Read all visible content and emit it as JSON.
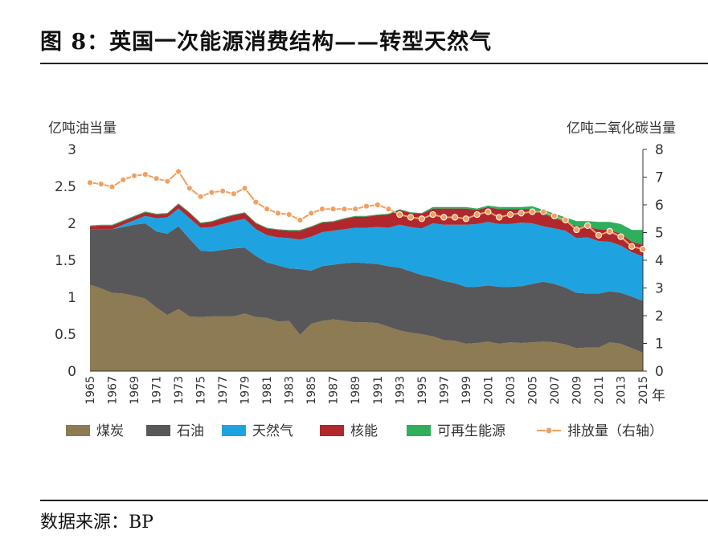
{
  "figure": {
    "title": "图 8：英国一次能源消费结构——转型天然气",
    "source": "数据来源：BP"
  },
  "chart_data": {
    "type": "area",
    "ylabel_left": "亿吨油当量",
    "ylabel_right": "亿吨二氧化碳当量",
    "x_unit": "年",
    "ylim_left": [
      0,
      3
    ],
    "ylim_right": [
      0,
      8
    ],
    "yticks_left": [
      "0",
      "0.5",
      "1",
      "1.5",
      "2",
      "2.5",
      "3"
    ],
    "yticks_right": [
      "0",
      "1",
      "2",
      "3",
      "4",
      "5",
      "6",
      "7",
      "8"
    ],
    "xticks": [
      "1965",
      "1967",
      "1969",
      "1971",
      "1973",
      "1975",
      "1977",
      "1979",
      "1981",
      "1983",
      "1985",
      "1987",
      "1989",
      "1991",
      "1993",
      "1995",
      "1997",
      "1999",
      "2001",
      "2003",
      "2005",
      "2007",
      "2009",
      "2011",
      "2013",
      "2015"
    ],
    "x": [
      1965,
      1966,
      1967,
      1968,
      1969,
      1970,
      1971,
      1972,
      1973,
      1974,
      1975,
      1976,
      1977,
      1978,
      1979,
      1980,
      1981,
      1982,
      1983,
      1984,
      1985,
      1986,
      1987,
      1988,
      1989,
      1990,
      1991,
      1992,
      1993,
      1994,
      1995,
      1996,
      1997,
      1998,
      1999,
      2000,
      2001,
      2002,
      2003,
      2004,
      2005,
      2006,
      2007,
      2008,
      2009,
      2010,
      2011,
      2012,
      2013,
      2014,
      2015
    ],
    "series": [
      {
        "name": "煤炭",
        "axis": "left",
        "color": "#8c7b53",
        "values": [
          1.17,
          1.12,
          1.06,
          1.05,
          1.02,
          0.98,
          0.86,
          0.76,
          0.84,
          0.74,
          0.73,
          0.74,
          0.74,
          0.74,
          0.78,
          0.73,
          0.72,
          0.67,
          0.68,
          0.49,
          0.64,
          0.68,
          0.7,
          0.68,
          0.66,
          0.66,
          0.65,
          0.6,
          0.55,
          0.52,
          0.5,
          0.47,
          0.42,
          0.41,
          0.37,
          0.38,
          0.4,
          0.37,
          0.39,
          0.38,
          0.39,
          0.4,
          0.39,
          0.36,
          0.31,
          0.32,
          0.32,
          0.39,
          0.37,
          0.31,
          0.25
        ]
      },
      {
        "name": "石油",
        "axis": "left",
        "color": "#58585a",
        "values": [
          0.75,
          0.8,
          0.86,
          0.9,
          0.96,
          1.02,
          1.03,
          1.1,
          1.12,
          1.05,
          0.9,
          0.88,
          0.9,
          0.92,
          0.89,
          0.83,
          0.75,
          0.76,
          0.71,
          0.89,
          0.72,
          0.74,
          0.74,
          0.78,
          0.81,
          0.8,
          0.8,
          0.82,
          0.85,
          0.83,
          0.8,
          0.8,
          0.8,
          0.78,
          0.77,
          0.76,
          0.76,
          0.77,
          0.75,
          0.77,
          0.79,
          0.81,
          0.79,
          0.77,
          0.75,
          0.73,
          0.73,
          0.69,
          0.69,
          0.7,
          0.7
        ]
      },
      {
        "name": "天然气",
        "axis": "left",
        "color": "#1fa3e0",
        "values": [
          0.0,
          0.0,
          0.0,
          0.03,
          0.06,
          0.1,
          0.18,
          0.22,
          0.24,
          0.28,
          0.31,
          0.33,
          0.35,
          0.37,
          0.39,
          0.36,
          0.37,
          0.38,
          0.41,
          0.4,
          0.46,
          0.46,
          0.46,
          0.46,
          0.47,
          0.48,
          0.5,
          0.52,
          0.58,
          0.6,
          0.63,
          0.73,
          0.76,
          0.79,
          0.84,
          0.85,
          0.86,
          0.85,
          0.85,
          0.86,
          0.82,
          0.75,
          0.75,
          0.77,
          0.74,
          0.76,
          0.71,
          0.67,
          0.64,
          0.6,
          0.6
        ]
      },
      {
        "name": "核能",
        "axis": "left",
        "color": "#b0282d",
        "values": [
          0.04,
          0.05,
          0.05,
          0.05,
          0.05,
          0.05,
          0.05,
          0.05,
          0.06,
          0.07,
          0.06,
          0.07,
          0.08,
          0.08,
          0.08,
          0.08,
          0.09,
          0.1,
          0.1,
          0.12,
          0.13,
          0.13,
          0.12,
          0.14,
          0.15,
          0.15,
          0.16,
          0.18,
          0.2,
          0.19,
          0.2,
          0.2,
          0.22,
          0.22,
          0.22,
          0.19,
          0.2,
          0.2,
          0.2,
          0.18,
          0.19,
          0.17,
          0.14,
          0.12,
          0.16,
          0.14,
          0.16,
          0.16,
          0.16,
          0.14,
          0.16
        ]
      },
      {
        "name": "可再生能源",
        "axis": "left",
        "color": "#2fae5c",
        "values": [
          0.01,
          0.01,
          0.01,
          0.01,
          0.01,
          0.01,
          0.01,
          0.01,
          0.01,
          0.01,
          0.01,
          0.01,
          0.01,
          0.01,
          0.01,
          0.01,
          0.01,
          0.01,
          0.01,
          0.01,
          0.01,
          0.01,
          0.01,
          0.01,
          0.01,
          0.01,
          0.01,
          0.01,
          0.01,
          0.01,
          0.01,
          0.02,
          0.02,
          0.02,
          0.02,
          0.02,
          0.02,
          0.03,
          0.03,
          0.03,
          0.04,
          0.05,
          0.06,
          0.06,
          0.07,
          0.08,
          0.1,
          0.11,
          0.13,
          0.16,
          0.2
        ]
      },
      {
        "name": "排放量（右轴）",
        "axis": "right",
        "color": "#f0a060",
        "marker": "circle",
        "values": [
          6.8,
          6.75,
          6.65,
          6.9,
          7.05,
          7.1,
          6.95,
          6.85,
          7.2,
          6.6,
          6.3,
          6.45,
          6.5,
          6.4,
          6.6,
          6.1,
          5.85,
          5.7,
          5.65,
          5.45,
          5.7,
          5.85,
          5.85,
          5.85,
          5.85,
          5.95,
          6.0,
          5.85,
          5.65,
          5.55,
          5.5,
          5.65,
          5.55,
          5.55,
          5.5,
          5.65,
          5.75,
          5.55,
          5.65,
          5.7,
          5.75,
          5.75,
          5.6,
          5.45,
          5.1,
          5.25,
          4.9,
          5.05,
          4.85,
          4.5,
          4.4
        ]
      }
    ],
    "legend_position": "bottom"
  }
}
